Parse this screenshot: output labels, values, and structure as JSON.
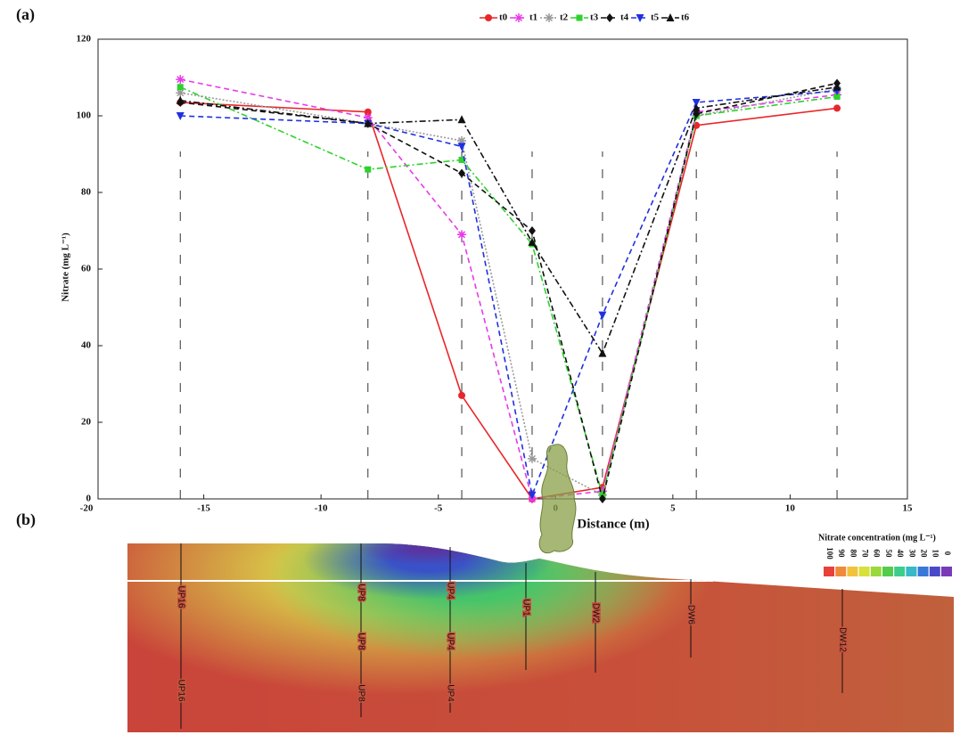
{
  "panels": {
    "a": "(a)",
    "b": "(b)"
  },
  "chart_data": {
    "type": "line",
    "x": [
      -16,
      -8,
      -4,
      -1,
      2,
      6,
      12
    ],
    "xlabel": "Distance (m)",
    "ylabel": "Nitrate (mg L⁻¹)",
    "xlim": [
      -20,
      15
    ],
    "xticks": [
      -20,
      -15,
      -10,
      -5,
      0,
      5,
      10,
      15
    ],
    "ylim": [
      0,
      120
    ],
    "yticks": [
      0,
      20,
      40,
      60,
      80,
      100,
      120
    ],
    "series": [
      {
        "name": "t0",
        "color": "#e8262a",
        "marker": "circle",
        "dash": "solid",
        "values": [
          103.5,
          101,
          27,
          0,
          3,
          97.5,
          102
        ]
      },
      {
        "name": "t1",
        "color": "#e83ae8",
        "marker": "star",
        "dash": "dashed",
        "values": [
          109.5,
          99.5,
          69,
          0,
          2,
          101,
          105.5
        ]
      },
      {
        "name": "t2",
        "color": "#9a9a9a",
        "marker": "star",
        "dash": "dotted",
        "values": [
          106,
          98,
          93.5,
          10.5,
          1,
          100,
          107
        ]
      },
      {
        "name": "t3",
        "color": "#2ed12e",
        "marker": "square",
        "dash": "dashdot",
        "values": [
          107.5,
          86,
          88.5,
          66.5,
          1,
          100,
          105
        ]
      },
      {
        "name": "t4",
        "color": "#111111",
        "marker": "diamond",
        "dash": "dashed",
        "values": [
          103.5,
          98,
          85,
          70,
          0,
          100.5,
          108.5
        ]
      },
      {
        "name": "t5",
        "color": "#2030e0",
        "marker": "tridown",
        "dash": "dashed",
        "values": [
          100,
          98,
          92,
          1,
          48,
          103.5,
          106.5
        ]
      },
      {
        "name": "t6",
        "color": "#111111",
        "marker": "triup",
        "dash": "dashdot",
        "values": [
          104,
          98,
          99,
          67,
          38,
          102,
          107.5
        ]
      }
    ]
  },
  "section": {
    "title": "Nitrate concentration (mg L⁻¹)",
    "wells": [
      "UP16",
      "UP8",
      "UP4",
      "UP1",
      "DW2",
      "DW6",
      "DW12"
    ],
    "colorbar": {
      "ticks": [
        100,
        90,
        80,
        70,
        60,
        50,
        40,
        30,
        20,
        10,
        0
      ],
      "colors": [
        "#e8403a",
        "#ef8a3a",
        "#f2c23c",
        "#d8e03a",
        "#9ad83c",
        "#52cc4a",
        "#3ccc8c",
        "#38b8c8",
        "#3878d8",
        "#4a4ac8",
        "#7a3ab8"
      ]
    }
  }
}
